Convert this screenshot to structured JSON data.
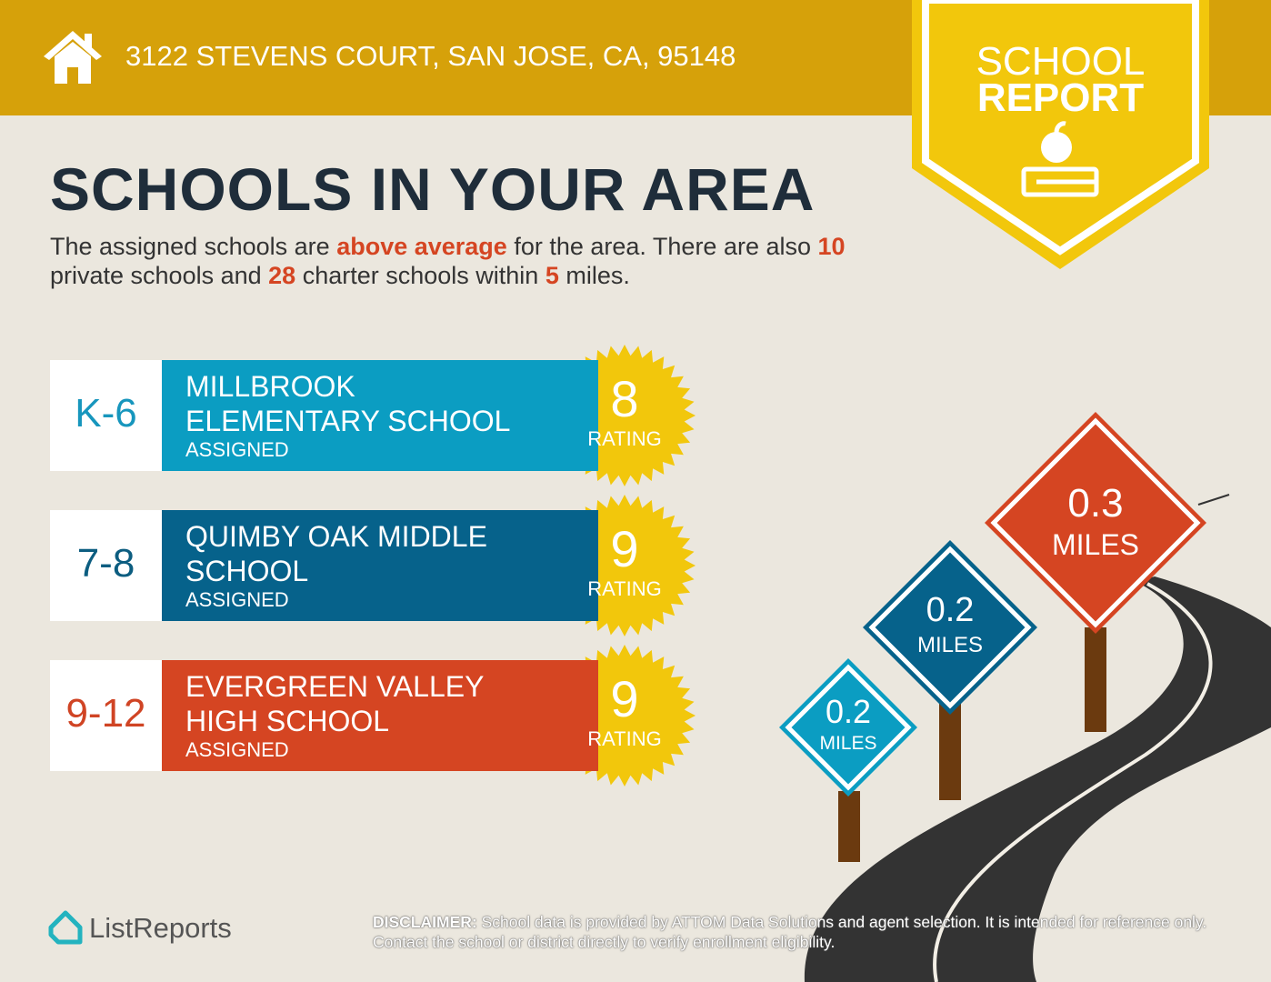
{
  "header": {
    "address": "3122 STEVENS COURT, SAN JOSE, CA, 95148"
  },
  "badge": {
    "line1": "SCHOOL",
    "line2": "REPORT"
  },
  "title": "SCHOOLS IN YOUR AREA",
  "summary": {
    "parts": [
      {
        "text": "The assigned schools are ",
        "em": false
      },
      {
        "text": "above average",
        "em": true
      },
      {
        "text": " for the area. There are also ",
        "em": false
      },
      {
        "text": "10",
        "em": true
      },
      {
        "text": " private schools and ",
        "em": false
      },
      {
        "text": "28",
        "em": true
      },
      {
        "text": " charter schools within ",
        "em": false
      },
      {
        "text": "5",
        "em": true
      },
      {
        "text": " miles.",
        "em": false
      }
    ]
  },
  "schools": [
    {
      "grade": "K-6",
      "name": [
        "MILLBROOK",
        "ELEMENTARY SCHOOL"
      ],
      "status": "ASSIGNED",
      "rating": 8,
      "rating_label": "RATING",
      "color": "#0b9dc2",
      "grade_color": "#1796bd"
    },
    {
      "grade": "7-8",
      "name": [
        "QUIMBY OAK MIDDLE",
        "SCHOOL"
      ],
      "status": "ASSIGNED",
      "rating": 9,
      "rating_label": "RATING",
      "color": "#06628b",
      "grade_color": "#0c5d80"
    },
    {
      "grade": "9-12",
      "name": [
        "EVERGREEN VALLEY",
        "HIGH SCHOOL"
      ],
      "status": "ASSIGNED",
      "rating": 9,
      "rating_label": "RATING",
      "color": "#d54522",
      "grade_color": "#d04424"
    }
  ],
  "signs": [
    {
      "distance": "0.2",
      "unit": "MILES",
      "color": "#0b9dc2"
    },
    {
      "distance": "0.2",
      "unit": "MILES",
      "color": "#06628b"
    },
    {
      "distance": "0.3",
      "unit": "MILES",
      "color": "#d54522"
    }
  ],
  "footer": {
    "logo": "ListReports",
    "disclaimer": {
      "label": "DISCLAIMER:",
      "text": " School data is provided by ATTOM Data Solutions and agent selection. It is intended for reference only. Contact the school or district directly to verify enrollment eligibility."
    }
  }
}
